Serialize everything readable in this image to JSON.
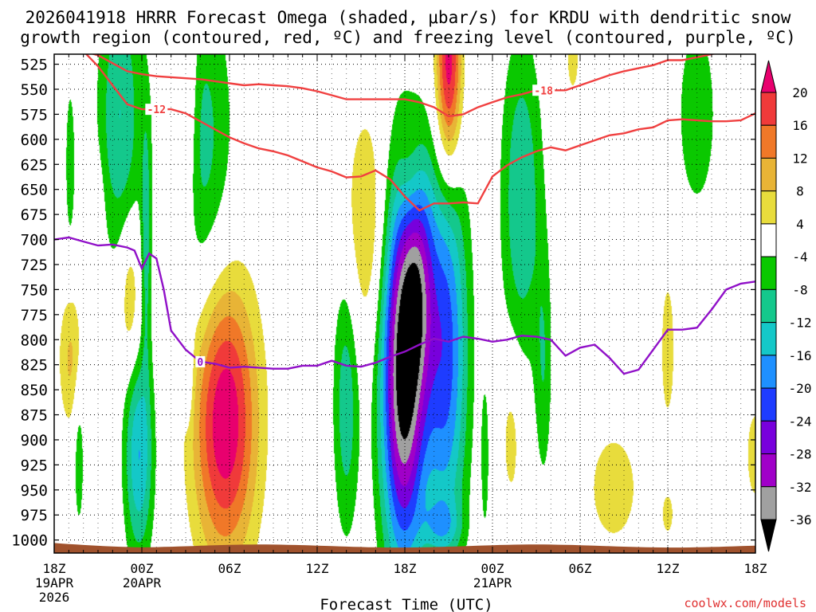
{
  "chart_data": {
    "type": "heatmap",
    "title_line1": "2026041918 HRRR Forecast Omega (shaded, μbar/s) for KRDU with dendritic snow",
    "title_line2": "growth region (contoured, red, ºC) and freezing level (contoured, purple, ºC)",
    "xlabel": "Forecast Time (UTC)",
    "credit": "coolwx.com/models",
    "x_hour_range": [
      0,
      48
    ],
    "x_ticks": [
      {
        "hour": 0,
        "label": "18Z",
        "date": "19APR",
        "year": "2026"
      },
      {
        "hour": 6,
        "label": "00Z",
        "date": "20APR",
        "year": ""
      },
      {
        "hour": 12,
        "label": "06Z",
        "date": "",
        "year": ""
      },
      {
        "hour": 18,
        "label": "12Z",
        "date": "",
        "year": ""
      },
      {
        "hour": 24,
        "label": "18Z",
        "date": "",
        "year": ""
      },
      {
        "hour": 30,
        "label": "00Z",
        "date": "21APR",
        "year": ""
      },
      {
        "hour": 36,
        "label": "06Z",
        "date": "",
        "year": ""
      },
      {
        "hour": 42,
        "label": "12Z",
        "date": "",
        "year": ""
      },
      {
        "hour": 48,
        "label": "18Z",
        "date": "",
        "year": ""
      }
    ],
    "y_levels": [
      525,
      550,
      575,
      600,
      625,
      650,
      675,
      700,
      725,
      750,
      775,
      800,
      825,
      850,
      875,
      900,
      925,
      950,
      975,
      1000
    ],
    "y_range_hpa": [
      515,
      1013
    ],
    "colorbar": {
      "boundaries": [
        "20",
        "16",
        "12",
        "8",
        "4",
        "-4",
        "-8",
        "-12",
        "-16",
        "-20",
        "-24",
        "-28",
        "-32",
        "-36"
      ],
      "colors": [
        "#e8006e",
        "#f03a3a",
        "#f07828",
        "#e8b436",
        "#e8dc3c",
        "#ffffff",
        "#0ac800",
        "#14c88c",
        "#14c8c8",
        "#1e90ff",
        "#1e3cff",
        "#7800dc",
        "#a000c8",
        "#a0a0a0",
        "#000000"
      ]
    },
    "contours": [
      {
        "name": "dgz-upper",
        "label": "-18",
        "color": "#f04040",
        "label_hour": 33.5,
        "x": [
          0,
          1,
          2,
          3,
          4,
          5,
          6,
          7,
          8,
          9,
          10,
          11,
          12,
          13,
          14,
          15,
          16,
          17,
          18,
          19,
          20,
          21,
          22,
          23,
          24,
          25,
          26,
          27,
          28,
          29,
          30,
          31,
          32,
          33,
          34,
          35,
          36,
          37,
          38,
          39,
          40,
          41,
          42,
          43,
          44,
          45,
          46,
          47,
          48
        ],
        "y": [
          509,
          510,
          512,
          516,
          524,
          532,
          535,
          537,
          538,
          539,
          540,
          542,
          544,
          546,
          545,
          546,
          547,
          549,
          552,
          556,
          560,
          560,
          560,
          560,
          560,
          563,
          568,
          577,
          575,
          568,
          563,
          558,
          555,
          551,
          551,
          551,
          546,
          541,
          536,
          532,
          529,
          526,
          521,
          521,
          518,
          515,
          512,
          509,
          507
        ]
      },
      {
        "name": "dgz-lower",
        "label": "-12",
        "color": "#f04040",
        "label_hour": 7,
        "x": [
          0,
          1,
          2,
          3,
          4,
          5,
          6,
          7,
          8,
          9,
          10,
          11,
          12,
          13,
          14,
          15,
          16,
          17,
          18,
          19,
          20,
          21,
          22,
          23,
          24,
          25,
          26,
          27,
          28,
          29,
          30,
          31,
          32,
          33,
          34,
          35,
          36,
          37,
          38,
          39,
          40,
          41,
          42,
          43,
          44,
          45,
          46,
          47,
          48
        ],
        "y": [
          505,
          507,
          512,
          527,
          546,
          565,
          570,
          570,
          570,
          574,
          582,
          590,
          598,
          604,
          609,
          612,
          616,
          622,
          628,
          632,
          638,
          637,
          631,
          640,
          657,
          671,
          664,
          664,
          663,
          664,
          637,
          626,
          618,
          612,
          608,
          611,
          606,
          601,
          596,
          594,
          590,
          588,
          581,
          580,
          581,
          582,
          582,
          581,
          574
        ]
      },
      {
        "name": "freezing-level",
        "label": "0",
        "color": "#9010c8",
        "label_hour": 10,
        "x": [
          0,
          1,
          2,
          3,
          4,
          5,
          5.5,
          6,
          6.5,
          7,
          7.5,
          8,
          9,
          10,
          11,
          12,
          13,
          14,
          15,
          16,
          17,
          18,
          19,
          20,
          21,
          22,
          23,
          24,
          25,
          26,
          27,
          28,
          29,
          30,
          31,
          32,
          33,
          34,
          35,
          36,
          37,
          38,
          39,
          40,
          41,
          42,
          43,
          44,
          45,
          46,
          47,
          48
        ],
        "y": [
          700,
          698,
          702,
          706,
          705,
          708,
          711,
          729,
          714,
          719,
          750,
          791,
          810,
          822,
          824,
          828,
          827,
          828,
          829,
          829,
          826,
          826,
          821,
          826,
          827,
          823,
          817,
          812,
          805,
          799,
          802,
          797,
          799,
          802,
          800,
          796,
          797,
          800,
          816,
          808,
          805,
          818,
          834,
          830,
          810,
          790,
          790,
          788,
          770,
          750,
          744,
          742
        ]
      }
    ],
    "omega_regions": [
      {
        "hour": 1.1,
        "hpa": 625,
        "hw": 0.35,
        "hh": 85,
        "peak": -7
      },
      {
        "hour": 1.7,
        "hpa": 905,
        "hw": 0.4,
        "hh": 95,
        "peak": -7
      },
      {
        "hour": 4.5,
        "hpa": 575,
        "hw": 1.5,
        "hh": 140,
        "peak": -12
      },
      {
        "hour": 6.3,
        "hpa": 700,
        "hw": 0.35,
        "hh": 130,
        "peak": -9
      },
      {
        "hour": 5.8,
        "hpa": 915,
        "hw": 1.0,
        "hh": 105,
        "peak": -16
      },
      {
        "hour": 10.0,
        "hpa": 610,
        "hw": 2.2,
        "hh": 170,
        "peak": -10
      },
      {
        "hour": 9.2,
        "hpa": 830,
        "hw": 0.3,
        "hh": 50,
        "peak": -7
      },
      {
        "hour": 20.0,
        "hpa": 860,
        "hw": 0.9,
        "hh": 135,
        "peak": -11
      },
      {
        "hour": 23.9,
        "hpa": 830,
        "hw": 1.5,
        "hh": 190,
        "peak": -40
      },
      {
        "hour": 25.0,
        "hpa": 740,
        "hw": 1.0,
        "hh": 110,
        "peak": -14
      },
      {
        "hour": 26.8,
        "hpa": 810,
        "hw": 1.5,
        "hh": 195,
        "peak": -22
      },
      {
        "hour": 26.5,
        "hpa": 985,
        "hw": 1.3,
        "hh": 25,
        "peak": -8
      },
      {
        "hour": 29.5,
        "hpa": 920,
        "hw": 0.3,
        "hh": 80,
        "peak": -6
      },
      {
        "hour": 32.0,
        "hpa": 660,
        "hw": 1.4,
        "hh": 160,
        "peak": -12
      },
      {
        "hour": 33.5,
        "hpa": 830,
        "hw": 0.6,
        "hh": 120,
        "peak": -7
      },
      {
        "hour": 44.0,
        "hpa": 575,
        "hw": 1.3,
        "hh": 95,
        "peak": -8
      },
      {
        "hour": 1.2,
        "hpa": 820,
        "hw": 0.9,
        "hh": 70,
        "peak": 9
      },
      {
        "hour": 3.0,
        "hpa": 690,
        "hw": 0.4,
        "hh": 60,
        "peak": 5
      },
      {
        "hour": 5.2,
        "hpa": 760,
        "hw": 0.7,
        "hh": 75,
        "peak": 9
      },
      {
        "hour": 9.1,
        "hpa": 560,
        "hw": 0.7,
        "hh": 150,
        "peak": 9
      },
      {
        "hour": 11.7,
        "hpa": 880,
        "hw": 2.2,
        "hh": 140,
        "peak": 24
      },
      {
        "hour": 21.5,
        "hpa": 690,
        "hw": 1.6,
        "hh": 120,
        "peak": 9
      },
      {
        "hour": 24.3,
        "hpa": 640,
        "hw": 0.9,
        "hh": 65,
        "peak": 6
      },
      {
        "hour": 27.0,
        "hpa": 530,
        "hw": 0.9,
        "hh": 105,
        "peak": 24
      },
      {
        "hour": 31.3,
        "hpa": 895,
        "hw": 0.8,
        "hh": 85,
        "peak": 6
      },
      {
        "hour": 38.3,
        "hpa": 948,
        "hw": 1.8,
        "hh": 60,
        "peak": 7
      },
      {
        "hour": 42.0,
        "hpa": 810,
        "hw": 0.6,
        "hh": 90,
        "peak": 6
      },
      {
        "hour": 42.0,
        "hpa": 975,
        "hw": 0.6,
        "hh": 30,
        "peak": 5
      },
      {
        "hour": 48.0,
        "hpa": 915,
        "hw": 0.8,
        "hh": 60,
        "peak": 6
      },
      {
        "hour": 35.5,
        "hpa": 520,
        "hw": 0.7,
        "hh": 55,
        "peak": 5
      }
    ]
  }
}
